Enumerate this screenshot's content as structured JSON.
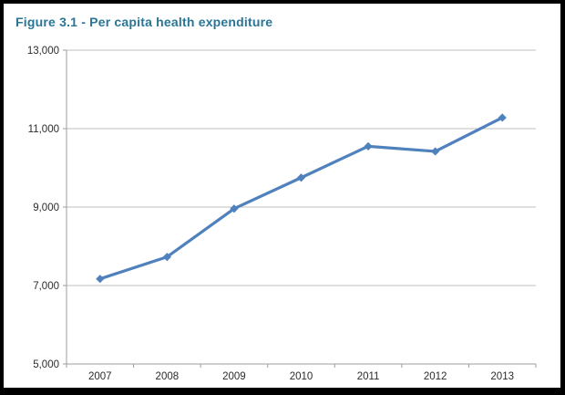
{
  "chart_data": {
    "type": "line",
    "title": "Figure 3.1 - Per capita health expenditure",
    "categories": [
      "2007",
      "2008",
      "2009",
      "2010",
      "2011",
      "2012",
      "2013"
    ],
    "series": [
      {
        "name": "Per capita health expenditure",
        "values": [
          7170,
          7730,
          8960,
          9750,
          10550,
          10420,
          11280
        ]
      }
    ],
    "xlabel": "",
    "ylabel": "",
    "ylim": [
      5000,
      13000
    ],
    "y_ticks": [
      {
        "value": 13000,
        "label": "13,000"
      },
      {
        "value": 11000,
        "label": "11,000"
      },
      {
        "value": 9000,
        "label": "9,000"
      },
      {
        "value": 7000,
        "label": "7,000"
      },
      {
        "value": 5000,
        "label": "5,000"
      }
    ],
    "grid": true,
    "legend": "none",
    "marker": "diamond",
    "line_width": 3.2,
    "colors": {
      "line": "#4F81BD",
      "title": "#2A7596",
      "gridline": "#BFBFBF",
      "axis": "#9E9E9E",
      "tick_label": "#2B2B2B",
      "frame": "#000000",
      "background": "#FFFFFF"
    }
  }
}
